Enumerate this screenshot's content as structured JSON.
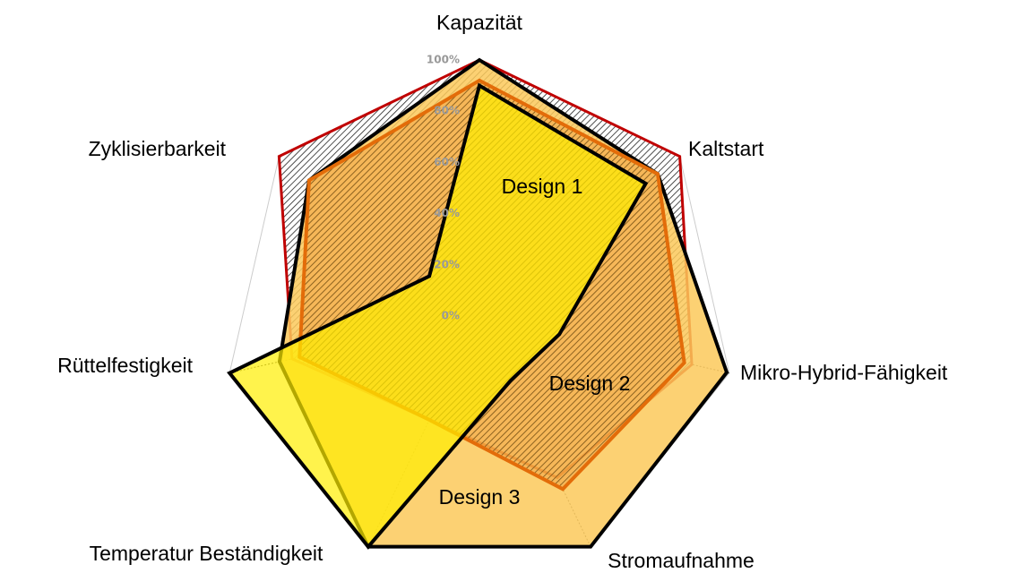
{
  "chart_data": {
    "type": "radar",
    "categories": [
      "Kapazität",
      "Kaltstart",
      "Mikro-Hybrid-Fähigkeit",
      "Stromaufnahme",
      "Temperatur Beständigkeit",
      "Rüttelfestigkeit",
      "Zyklisierbarkeit"
    ],
    "ylim": [
      0,
      100
    ],
    "yticks": [
      {
        "value": 0,
        "label": "0%"
      },
      {
        "value": 20,
        "label": "20%"
      },
      {
        "value": 40,
        "label": "40%"
      },
      {
        "value": 60,
        "label": "60%"
      },
      {
        "value": 80,
        "label": "80%"
      },
      {
        "value": 100,
        "label": "100%"
      }
    ],
    "series": [
      {
        "color": "#c00000",
        "values": [
          100,
          100,
          85,
          70,
          45,
          75,
          100
        ]
      },
      {
        "name": "Design 3",
        "color": "#fcc95a",
        "values": [
          100,
          89,
          99,
          100,
          100,
          80,
          85
        ]
      },
      {
        "name": "Design 2",
        "color": "#e36c09",
        "values": [
          92,
          89,
          82,
          75,
          45,
          72,
          85
        ]
      },
      {
        "name": "Design 1",
        "color": "#ffee00",
        "values": [
          90,
          83,
          32,
          28,
          100,
          100,
          25
        ]
      }
    ]
  }
}
